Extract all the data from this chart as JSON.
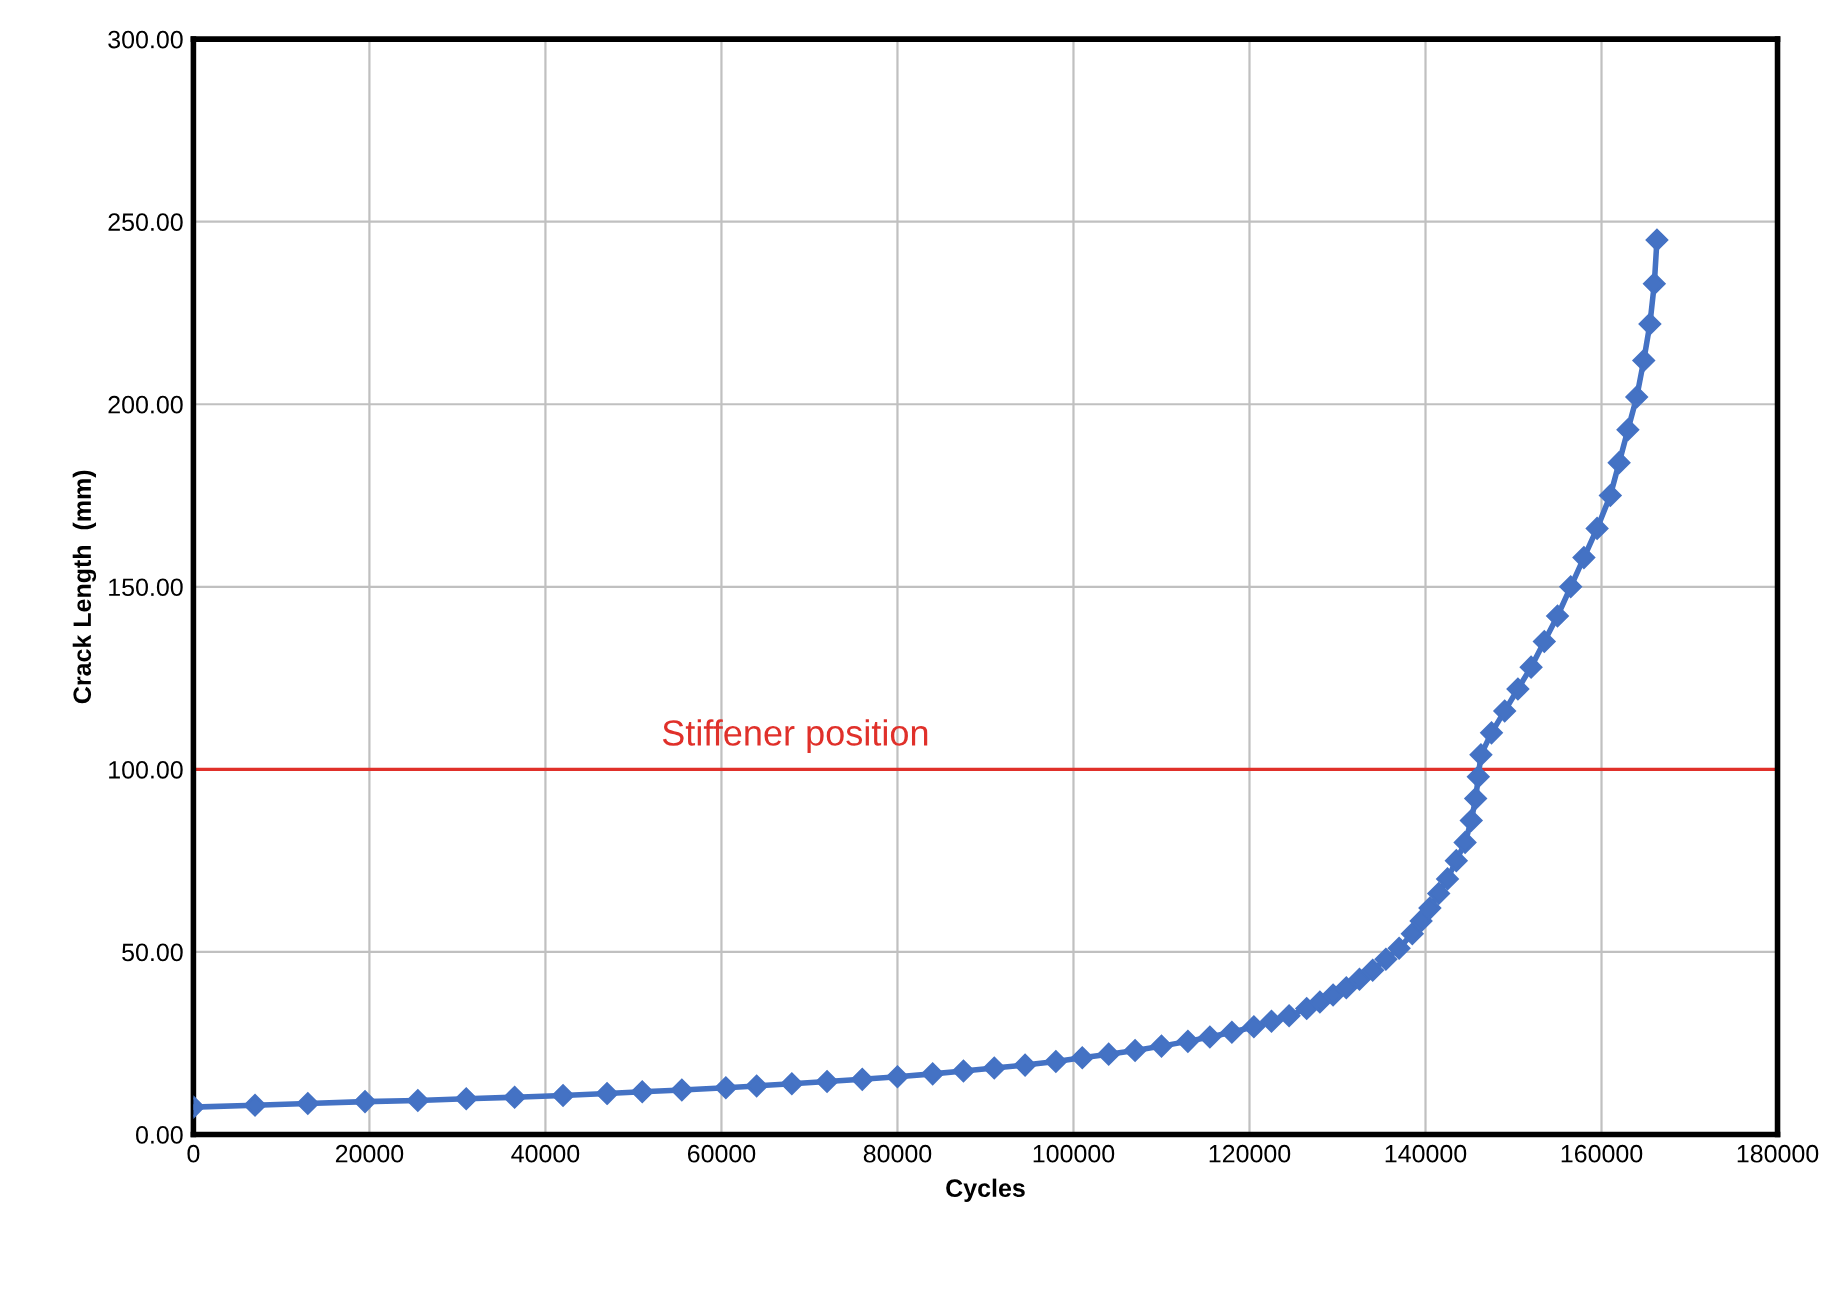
{
  "chart_data": {
    "type": "line",
    "xlabel": "Cycles",
    "ylabel": "Crack Length  (mm)",
    "x": [
      0,
      7000,
      13000,
      19500,
      25500,
      31000,
      36500,
      42000,
      47000,
      51000,
      55500,
      60500,
      64000,
      68000,
      72000,
      76000,
      80000,
      84000,
      87500,
      91000,
      94500,
      98000,
      101000,
      104000,
      107000,
      110000,
      113000,
      115500,
      118000,
      120500,
      122500,
      124500,
      126500,
      128000,
      129500,
      131000,
      132500,
      134000,
      135500,
      137000,
      138500,
      139500,
      140500,
      141500,
      142500,
      143500,
      144500,
      145200,
      145700,
      146000,
      146300,
      147500,
      149000,
      150500,
      152000,
      153500,
      155000,
      156500,
      158000,
      159500,
      161000,
      162000,
      163000,
      164000,
      164800,
      165500,
      166000,
      166300
    ],
    "series": [
      {
        "color": "#4472c4",
        "values": [
          7.5,
          8,
          8.5,
          9,
          9.3,
          9.8,
          10.2,
          10.7,
          11.2,
          11.7,
          12.2,
          12.8,
          13.3,
          13.9,
          14.5,
          15.1,
          15.8,
          16.6,
          17.4,
          18.2,
          19,
          20,
          21,
          22,
          23,
          24.2,
          25.5,
          26.7,
          28,
          29.5,
          31,
          32.5,
          34.5,
          36.3,
          38.2,
          40.2,
          42.5,
          45,
          48,
          51,
          55,
          58.5,
          62,
          66,
          70,
          75,
          80,
          86,
          92,
          98,
          104,
          110,
          116,
          122,
          128,
          135,
          142,
          150,
          158,
          166,
          175,
          184,
          193,
          202,
          212,
          222,
          233,
          245
        ]
      }
    ],
    "xlim": [
      0,
      180000
    ],
    "xticks": [
      0,
      20000,
      40000,
      60000,
      80000,
      100000,
      120000,
      140000,
      160000,
      180000
    ],
    "ylim": [
      0,
      300
    ],
    "yticks": [
      {
        "value": 0,
        "label": "0.00"
      },
      {
        "value": 50,
        "label": "50.00"
      },
      {
        "value": 100,
        "label": "100.00"
      },
      {
        "value": 150,
        "label": "150.00"
      },
      {
        "value": 200,
        "label": "200.00"
      },
      {
        "value": 250,
        "label": "250.00"
      },
      {
        "value": 300,
        "label": "300.00"
      }
    ],
    "ref_lines": [
      {
        "axis": "y",
        "value": 100,
        "label": "Stiffener position",
        "color": "#e0302a"
      }
    ],
    "grid": true,
    "marker": "diamond",
    "line_style": "solid"
  }
}
